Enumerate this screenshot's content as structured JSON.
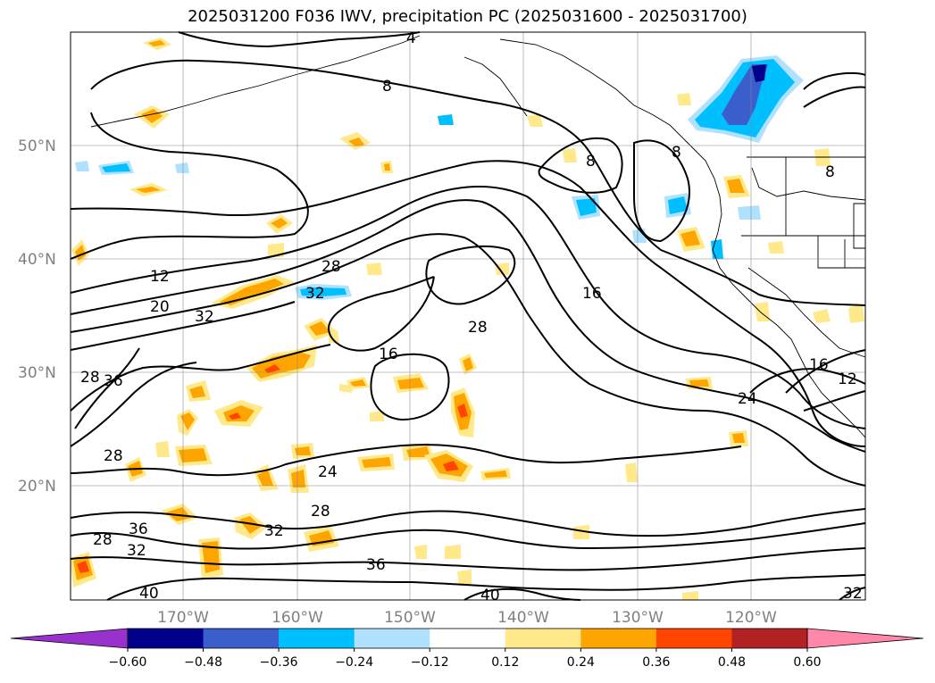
{
  "title": "2025031200 F036 IWV, precipitation PC (2025031600 - 2025031700)",
  "map": {
    "lat_labels": [
      "50°N",
      "40°N",
      "30°N",
      "20°N"
    ],
    "lon_labels": [
      "170°W",
      "160°W",
      "150°W",
      "140°W",
      "130°W",
      "120°W"
    ],
    "contour_labels": [
      "4",
      "8",
      "8",
      "12",
      "20",
      "28",
      "32",
      "32",
      "28",
      "16",
      "16",
      "28",
      "24",
      "16",
      "12",
      "36",
      "28",
      "24",
      "28",
      "32",
      "36",
      "28",
      "32",
      "36",
      "40",
      "40",
      "32",
      "8",
      "8"
    ]
  },
  "colorbar": {
    "ticks": [
      "−0.60",
      "−0.48",
      "−0.36",
      "−0.24",
      "−0.12",
      "0.12",
      "0.24",
      "0.36",
      "0.48",
      "0.60"
    ],
    "colors": [
      "#9932cc",
      "#00008b",
      "#3a5fcd",
      "#00bfff",
      "#b0e2ff",
      "#ffffff",
      "#ffe98a",
      "#ffa500",
      "#ff4500",
      "#b22222",
      "#ff88aa"
    ]
  }
}
